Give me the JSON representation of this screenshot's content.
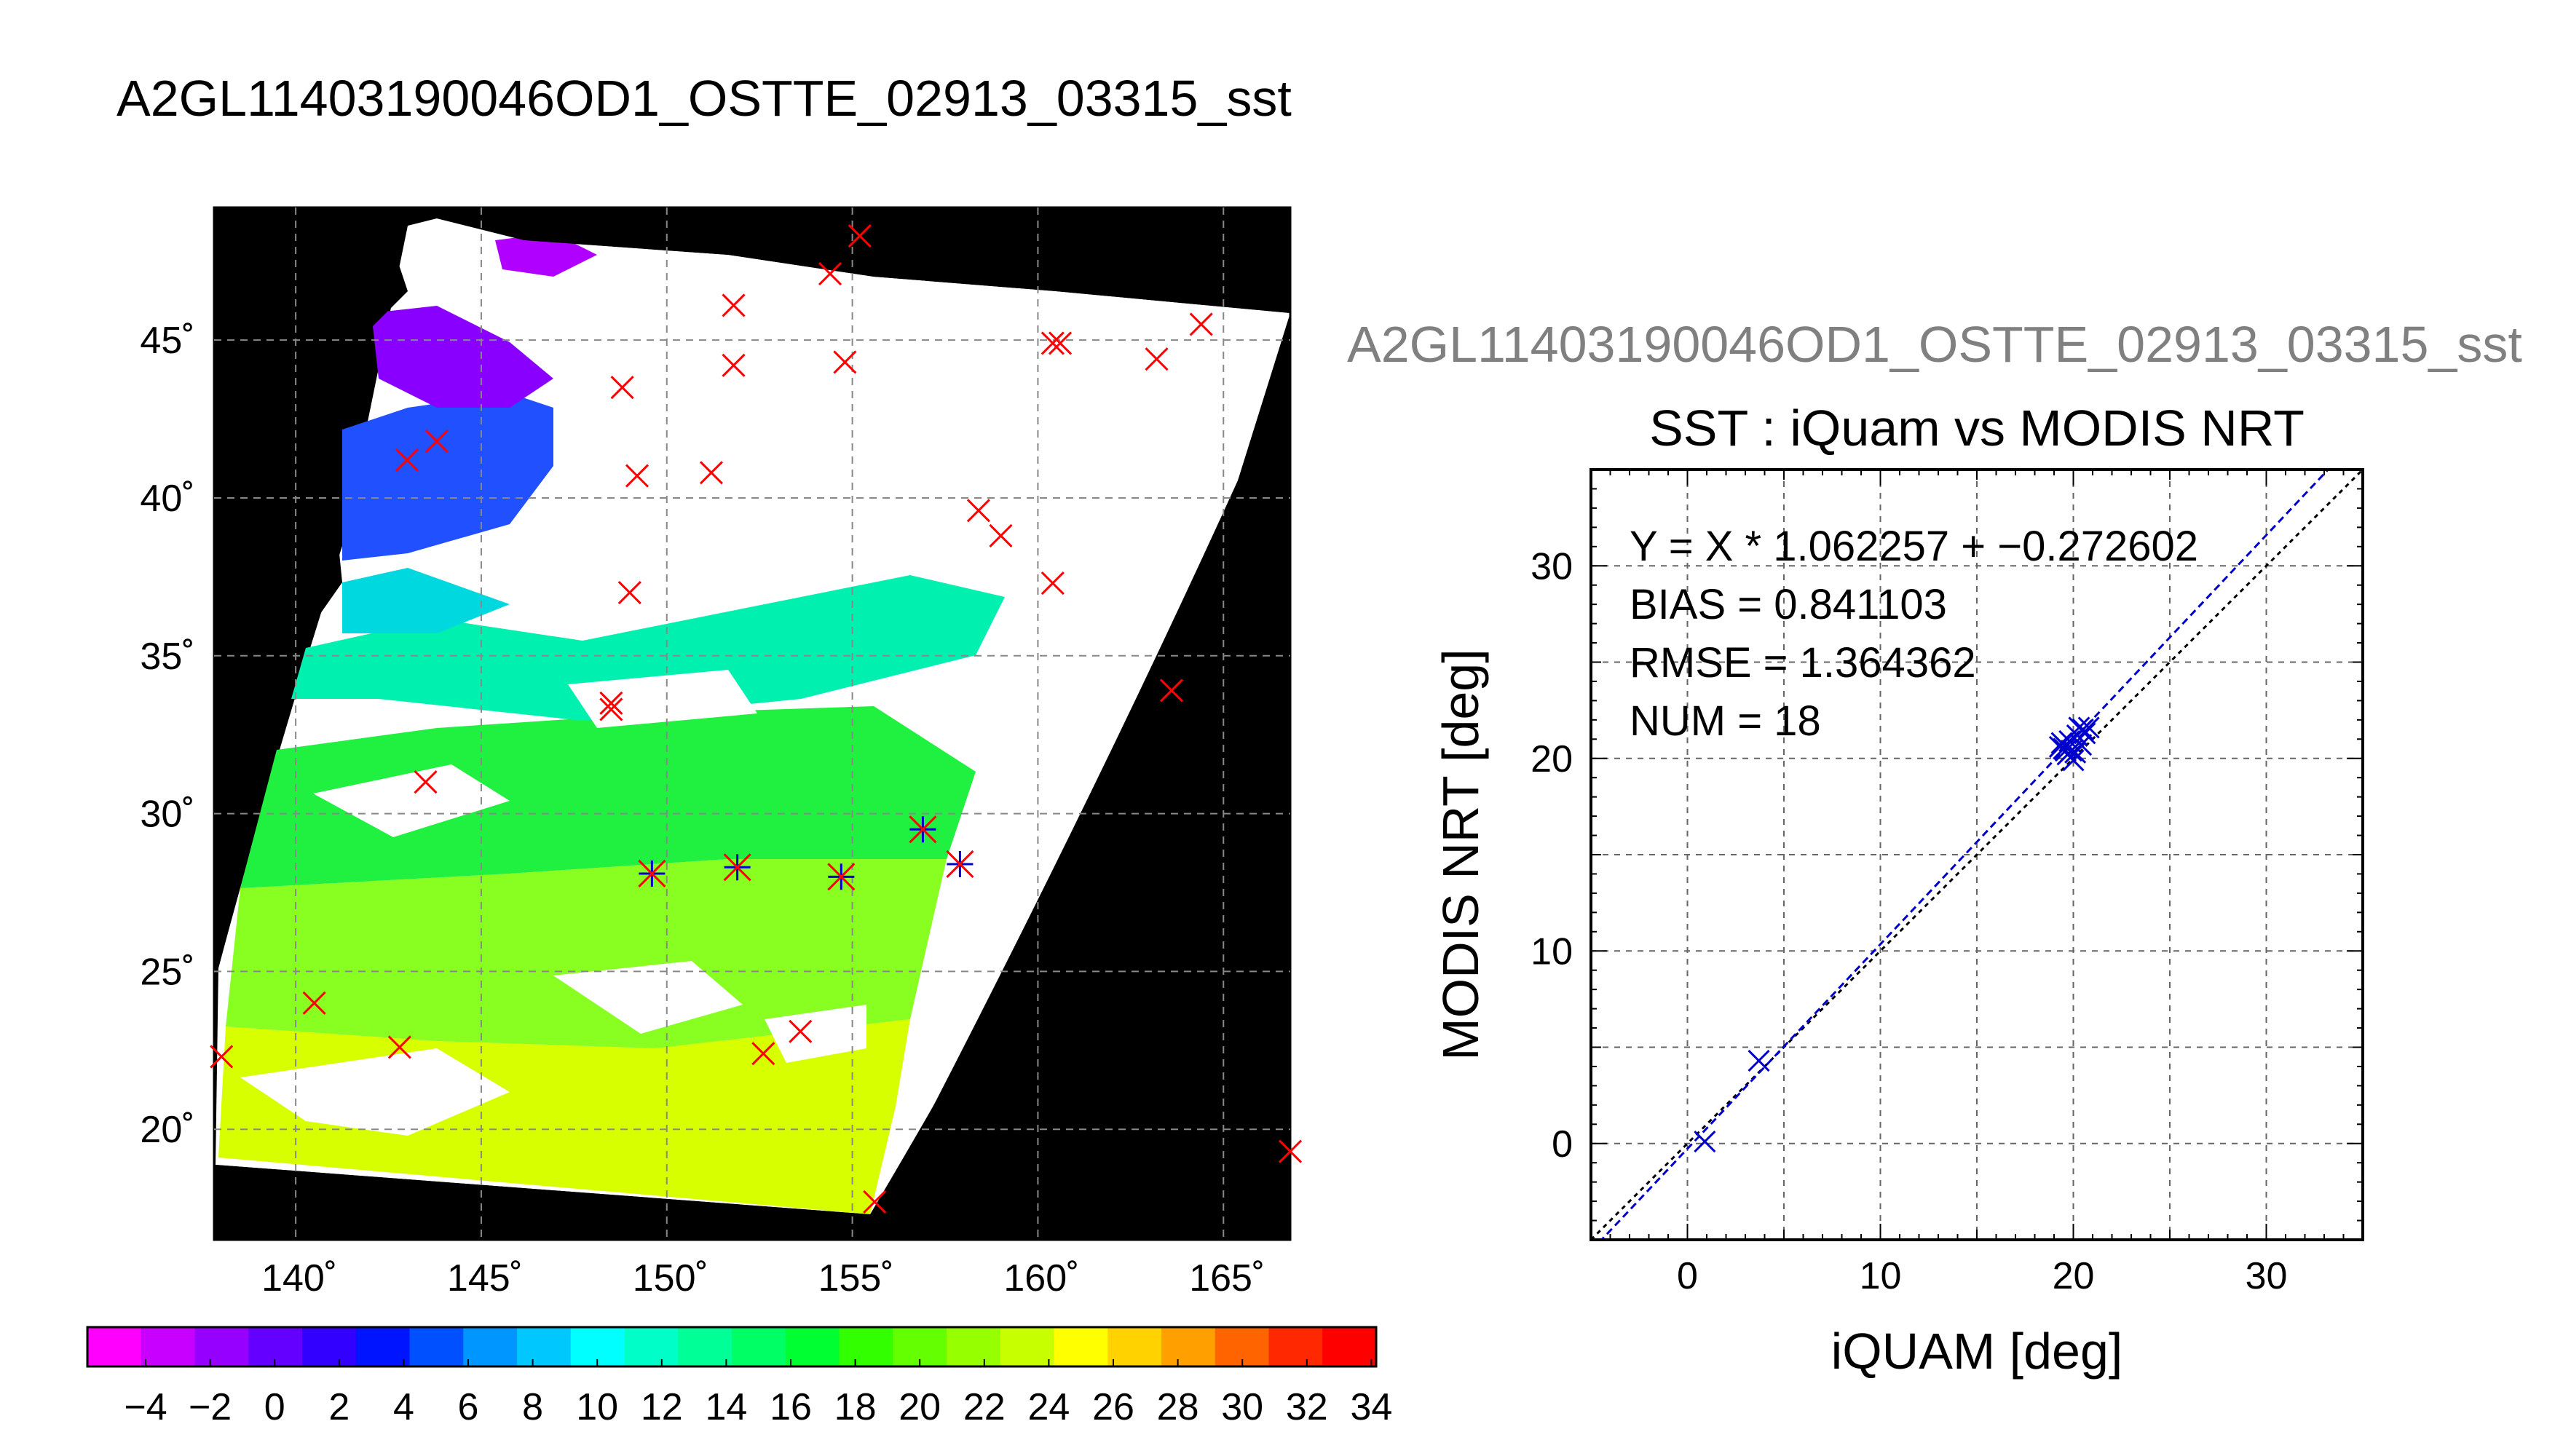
{
  "title": "A2GL11403190046OD1_OSTTE_02913_03315_sst",
  "map": {
    "lon_ticks": [
      "140˚",
      "145˚",
      "150˚",
      "155˚",
      "160˚",
      "165˚"
    ],
    "lat_ticks": [
      "45˚",
      "40˚",
      "35˚",
      "30˚",
      "25˚",
      "20˚"
    ],
    "lon_range": [
      137.8,
      166.8
    ],
    "lat_range": [
      16.5,
      49.2
    ],
    "grid": true,
    "colorbar": {
      "ticks": [
        "−4",
        "−2",
        "0",
        "2",
        "4",
        "6",
        "8",
        "10",
        "12",
        "14",
        "16",
        "18",
        "20",
        "22",
        "24",
        "26",
        "28",
        "30",
        "32",
        "34"
      ],
      "colors": [
        "#ff00ff",
        "#c800ff",
        "#9600ff",
        "#6400ff",
        "#3200ff",
        "#0014ff",
        "#0050ff",
        "#0096ff",
        "#00c8ff",
        "#00ffff",
        "#00ffc8",
        "#00ff96",
        "#00ff64",
        "#00ff32",
        "#32ff00",
        "#64ff00",
        "#96ff00",
        "#c8ff00",
        "#ffff00",
        "#ffd200",
        "#ffa000",
        "#ff6400",
        "#ff2800",
        "#ff0000"
      ]
    },
    "markers": {
      "red_x": [
        [
          138.0,
          22.3
        ],
        [
          140.5,
          24.0
        ],
        [
          142.8,
          22.6
        ],
        [
          143.5,
          31.0
        ],
        [
          143.0,
          41.2
        ],
        [
          143.8,
          41.8
        ],
        [
          148.5,
          33.5
        ],
        [
          148.5,
          33.3
        ],
        [
          148.8,
          43.5
        ],
        [
          149.0,
          37.0
        ],
        [
          149.2,
          40.7
        ],
        [
          151.2,
          40.8
        ],
        [
          151.8,
          44.2
        ],
        [
          151.8,
          46.1
        ],
        [
          152.6,
          22.4
        ],
        [
          153.6,
          23.1
        ],
        [
          154.4,
          47.1
        ],
        [
          154.8,
          44.3
        ],
        [
          155.2,
          48.3
        ],
        [
          155.6,
          17.7
        ],
        [
          158.4,
          39.6
        ],
        [
          159.0,
          38.8
        ],
        [
          160.4,
          37.3
        ],
        [
          160.4,
          44.9
        ],
        [
          160.6,
          44.9
        ],
        [
          163.2,
          44.4
        ],
        [
          163.6,
          33.9
        ],
        [
          164.4,
          45.5
        ],
        [
          166.8,
          19.3
        ]
      ],
      "matchups": [
        [
          149.6,
          28.1
        ],
        [
          151.9,
          28.3
        ],
        [
          154.7,
          28.0
        ],
        [
          156.9,
          29.5
        ],
        [
          157.9,
          28.4
        ]
      ]
    },
    "marker_colors": {
      "red": "#ff0000",
      "blue": "#0000cc",
      "land": "#000000",
      "cloud": "#ffffff"
    }
  },
  "scatter_subtitle": "A2GL11403190046OD1_OSTTE_02913_03315_sst",
  "chart_data": {
    "type": "scatter",
    "title": "SST : iQuam vs MODIS NRT",
    "xlabel": "iQUAM [deg]",
    "ylabel": "MODIS NRT [deg]",
    "xlim": [
      -5,
      35
    ],
    "ylim": [
      -5,
      35
    ],
    "xticks": [
      0,
      10,
      20,
      30
    ],
    "yticks": [
      0,
      10,
      20,
      30
    ],
    "grid": true,
    "annotations": [
      "Y = X * 1.062257 + −0.272602",
      "BIAS = 0.841103",
      "RMSE = 1.364362",
      "NUM = 18"
    ],
    "regression": {
      "slope": 1.062257,
      "intercept": -0.272602
    },
    "points": [
      [
        0.9,
        0.1
      ],
      [
        3.7,
        4.3
      ],
      [
        19.4,
        20.8
      ],
      [
        19.5,
        20.5
      ],
      [
        19.6,
        20.6
      ],
      [
        19.7,
        20.2
      ],
      [
        19.8,
        20.9
      ],
      [
        19.9,
        20.4
      ],
      [
        20.0,
        19.9
      ],
      [
        20.1,
        20.3
      ],
      [
        20.2,
        21.2
      ],
      [
        20.3,
        21.6
      ],
      [
        20.4,
        20.7
      ],
      [
        20.5,
        21.5
      ],
      [
        20.6,
        21.3
      ],
      [
        20.8,
        21.6
      ],
      [
        19.3,
        20.6
      ],
      [
        19.6,
        20.4
      ]
    ],
    "colors": {
      "points": "#0000cc",
      "fit": "#0000cc",
      "one_to_one": "#000000"
    }
  }
}
